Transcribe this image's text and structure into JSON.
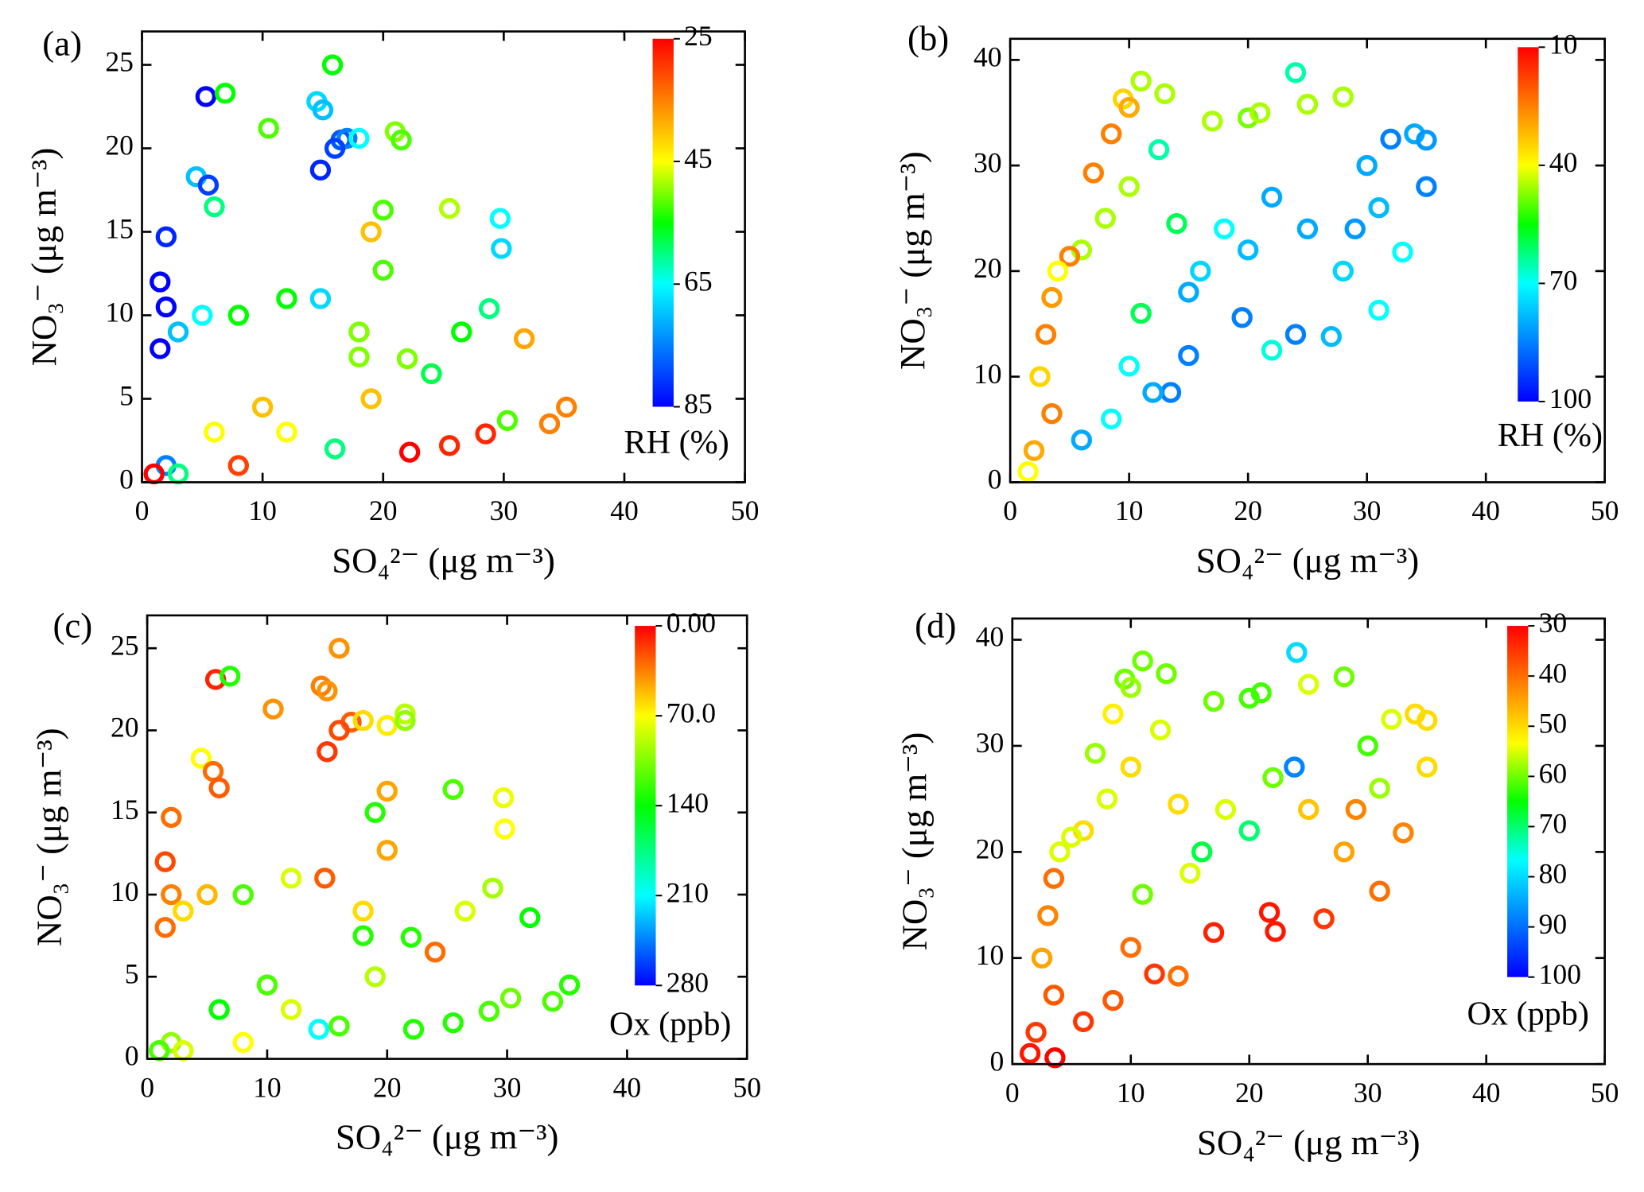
{
  "chart_data": [
    {
      "type": "scatter",
      "label": "(a)",
      "xlabel": "SO₄²⁻ (μg m⁻³)",
      "ylabel": "NO₃⁻ (μg m⁻³)",
      "xlim": [
        0,
        50
      ],
      "xticks": [
        0,
        10,
        20,
        30,
        40,
        50
      ],
      "ylim": [
        0,
        27
      ],
      "yticks": [
        0,
        5,
        10,
        15,
        20,
        25
      ],
      "x": [
        5.3,
        6.9,
        15.8,
        14.5,
        15,
        16.5,
        17,
        14.8,
        16,
        18,
        21,
        21.5,
        20,
        10.5,
        4.5,
        5.5,
        6,
        2,
        1.5,
        2,
        1.5,
        3,
        5,
        8,
        12,
        14.8,
        18,
        20,
        25.5,
        29.7,
        29.8,
        28.8,
        26.5,
        31.7,
        24,
        22,
        35.2,
        33.8,
        28.5,
        22.2,
        25.5,
        30.3,
        19,
        19,
        10,
        2,
        3,
        8,
        1,
        6,
        12,
        16,
        18
      ],
      "values": [
        23.1,
        23.3,
        25,
        22.8,
        22.3,
        20.5,
        20.6,
        18.7,
        20,
        20.6,
        21,
        20.5,
        16.3,
        21.2,
        18.3,
        17.8,
        16.5,
        14.7,
        12,
        10.5,
        8,
        9,
        10,
        10,
        11,
        11,
        9,
        12.7,
        16.4,
        15.8,
        14,
        10.4,
        9,
        8.6,
        6.5,
        7.4,
        4.5,
        3.5,
        2.9,
        1.8,
        2.2,
        3.7,
        15,
        5,
        4.5,
        1,
        0.5,
        1,
        0.5,
        3,
        3,
        2,
        7.5
      ],
      "color_values": [
        85,
        55,
        55,
        68,
        70,
        78,
        75,
        82,
        80,
        65,
        50,
        52,
        52,
        52,
        70,
        80,
        60,
        82,
        85,
        85,
        85,
        70,
        65,
        55,
        55,
        68,
        50,
        52,
        48,
        65,
        68,
        60,
        55,
        38,
        58,
        50,
        35,
        35,
        28,
        25,
        28,
        52,
        40,
        40,
        40,
        75,
        60,
        30,
        25,
        45,
        45,
        60,
        50
      ],
      "colorbar": {
        "label": "RH (%)",
        "lim": [
          25,
          85
        ],
        "ticks": [
          25,
          45,
          65,
          85
        ],
        "colormap": [
          "#ff0000",
          "#ff8000",
          "#ffff00",
          "#00ff00",
          "#00ffff",
          "#0080ff",
          "#0000ff"
        ]
      }
    },
    {
      "type": "scatter",
      "label": "(b)",
      "xlabel": "SO₄²⁻ (μg m⁻³)",
      "ylabel": "NO₃⁻ (μg m⁻³)",
      "xlim": [
        0,
        50
      ],
      "xticks": [
        0,
        10,
        20,
        30,
        40,
        50
      ],
      "ylim": [
        0,
        42
      ],
      "yticks": [
        0,
        10,
        20,
        30,
        40
      ],
      "x": [
        24,
        11,
        9.5,
        10,
        8.5,
        13,
        7,
        12.5,
        17,
        20,
        21,
        25,
        28,
        34,
        35,
        32,
        30,
        35,
        31,
        33,
        27,
        22,
        24,
        19.5,
        15,
        13.5,
        12,
        6,
        8.5,
        10,
        15,
        20,
        25,
        29,
        18,
        22,
        14,
        10,
        8,
        6,
        5,
        3.5,
        3,
        2.5,
        3.5,
        2,
        1.5,
        4,
        11,
        16,
        31,
        28
      ],
      "values": [
        38.8,
        38,
        36.3,
        35.5,
        33,
        36.8,
        29.3,
        31.5,
        34.2,
        34.5,
        35,
        35.8,
        36.5,
        33,
        32.4,
        32.5,
        30,
        28,
        16.3,
        21.8,
        13.8,
        12.5,
        14,
        15.6,
        12,
        8.5,
        8.5,
        4,
        6,
        11,
        18,
        22,
        24,
        24,
        24,
        27,
        24.5,
        28,
        25,
        22,
        21.4,
        17.5,
        14,
        10,
        6.5,
        3,
        1,
        20,
        16,
        20,
        26,
        20
      ],
      "color_values": [
        65,
        45,
        35,
        30,
        25,
        45,
        25,
        65,
        45,
        48,
        45,
        45,
        45,
        80,
        82,
        85,
        80,
        85,
        70,
        70,
        78,
        68,
        85,
        85,
        85,
        85,
        80,
        80,
        70,
        70,
        80,
        78,
        80,
        82,
        70,
        80,
        60,
        45,
        45,
        45,
        25,
        28,
        25,
        35,
        25,
        30,
        40,
        40,
        60,
        75,
        78,
        75
      ],
      "colorbar": {
        "label": "RH (%)",
        "lim": [
          10,
          100
        ],
        "ticks": [
          10,
          40,
          70,
          100
        ],
        "colormap": [
          "#ff0000",
          "#ff8000",
          "#ffff00",
          "#00ff00",
          "#00ffff",
          "#0080ff",
          "#0000ff"
        ]
      }
    },
    {
      "type": "scatter",
      "label": "(c)",
      "xlabel": "SO₄²⁻ (μg m⁻³)",
      "ylabel": "NO₃⁻ (μg m⁻³)",
      "xlim": [
        0,
        50
      ],
      "xticks": [
        0,
        10,
        20,
        30,
        40,
        50
      ],
      "ylim": [
        0,
        27
      ],
      "yticks": [
        0,
        5,
        10,
        15,
        20,
        25
      ],
      "x": [
        5.7,
        6.9,
        16,
        14.5,
        15,
        17,
        16,
        15,
        18,
        20,
        21.5,
        21.5,
        20,
        10.5,
        4.5,
        5.5,
        6,
        2,
        1.5,
        2,
        1.5,
        3,
        5,
        8,
        12,
        14.8,
        18,
        20,
        25.5,
        29.7,
        29.8,
        28.8,
        26.5,
        31.9,
        24,
        22,
        35.2,
        33.8,
        28.5,
        22.2,
        25.5,
        30.3,
        19,
        19,
        10,
        2,
        3,
        8,
        1,
        6,
        12,
        16,
        18,
        14.3
      ],
      "values": [
        23.1,
        23.3,
        25,
        22.7,
        22.4,
        20.5,
        20,
        18.7,
        20.6,
        20.3,
        21,
        20.6,
        16.3,
        21.3,
        18.3,
        17.5,
        16.5,
        14.7,
        12,
        10,
        8,
        9,
        10,
        10,
        11,
        11,
        9,
        12.7,
        16.4,
        15.9,
        14,
        10.4,
        9,
        8.6,
        6.5,
        7.4,
        4.5,
        3.5,
        2.9,
        1.8,
        2.2,
        3.7,
        15,
        5,
        4.5,
        1,
        0.5,
        1,
        0.5,
        3,
        3,
        2,
        7.5,
        1.8
      ],
      "color_values": [
        10,
        130,
        40,
        35,
        40,
        25,
        20,
        15,
        60,
        65,
        90,
        100,
        45,
        40,
        70,
        30,
        25,
        30,
        20,
        35,
        30,
        60,
        50,
        120,
        80,
        25,
        60,
        45,
        120,
        75,
        70,
        95,
        80,
        140,
        30,
        130,
        130,
        120,
        120,
        130,
        130,
        110,
        130,
        90,
        120,
        100,
        80,
        70,
        120,
        140,
        80,
        120,
        130,
        210
      ],
      "colorbar": {
        "label": "Ox (ppb)",
        "lim": [
          0,
          280
        ],
        "ticks": [
          {
            "value": 0,
            "label": "0.00"
          },
          {
            "value": 70,
            "label": "70.0"
          },
          140,
          210,
          280
        ],
        "colormap": [
          "#ff0000",
          "#ffff00",
          "#00ff00",
          "#00ffff",
          "#0000ff"
        ]
      }
    },
    {
      "type": "scatter",
      "label": "(d)",
      "xlabel": "SO₄²⁻ (μg m⁻³)",
      "ylabel": "NO₃⁻ (μg m⁻³)",
      "xlim": [
        0,
        50
      ],
      "xticks": [
        0,
        10,
        20,
        30,
        40,
        50
      ],
      "ylim": [
        0,
        42
      ],
      "yticks": [
        0,
        10,
        20,
        30,
        40
      ],
      "x": [
        24,
        11,
        9.5,
        10,
        8.5,
        13,
        7,
        12.5,
        17,
        20,
        21,
        25,
        28,
        34,
        35,
        32,
        30,
        35,
        31,
        33,
        26.3,
        22.2,
        21.7,
        17,
        14,
        12,
        6,
        8.5,
        10,
        15,
        20,
        25,
        29,
        18,
        22,
        14,
        10,
        8,
        6,
        5,
        3.5,
        3,
        2.5,
        3.5,
        2,
        1.5,
        4,
        11,
        16,
        31,
        28,
        23.8,
        3.6
      ],
      "values": [
        38.8,
        38,
        36.3,
        35.5,
        33,
        36.8,
        29.3,
        31.5,
        34.2,
        34.5,
        35,
        35.8,
        36.5,
        33,
        32.4,
        32.5,
        30,
        28,
        16.3,
        21.8,
        13.7,
        12.5,
        14.3,
        12.4,
        8.3,
        8.5,
        4,
        6,
        11,
        18,
        22,
        24,
        24,
        24,
        27,
        24.5,
        28,
        25,
        22,
        21.4,
        17.5,
        14,
        10,
        6.5,
        3,
        1,
        20,
        16,
        20,
        26,
        20,
        28,
        0.6
      ],
      "color_values": [
        80,
        60,
        60,
        58,
        52,
        60,
        58,
        55,
        60,
        62,
        62,
        55,
        60,
        50,
        50,
        55,
        62,
        50,
        40,
        42,
        35,
        32,
        32,
        33,
        40,
        35,
        35,
        38,
        40,
        55,
        70,
        48,
        42,
        55,
        60,
        50,
        50,
        55,
        50,
        55,
        40,
        42,
        45,
        38,
        35,
        32,
        55,
        60,
        68,
        58,
        45,
        88,
        25
      ],
      "colorbar": {
        "label": "Ox (ppb)",
        "lim": [
          30,
          100
        ],
        "ticks": [
          30,
          40,
          50,
          60,
          70,
          80,
          90,
          100
        ],
        "colormap": [
          "#ff0000",
          "#ff8000",
          "#ffff00",
          "#00ff00",
          "#00ffff",
          "#0080ff",
          "#0000ff"
        ]
      }
    }
  ]
}
